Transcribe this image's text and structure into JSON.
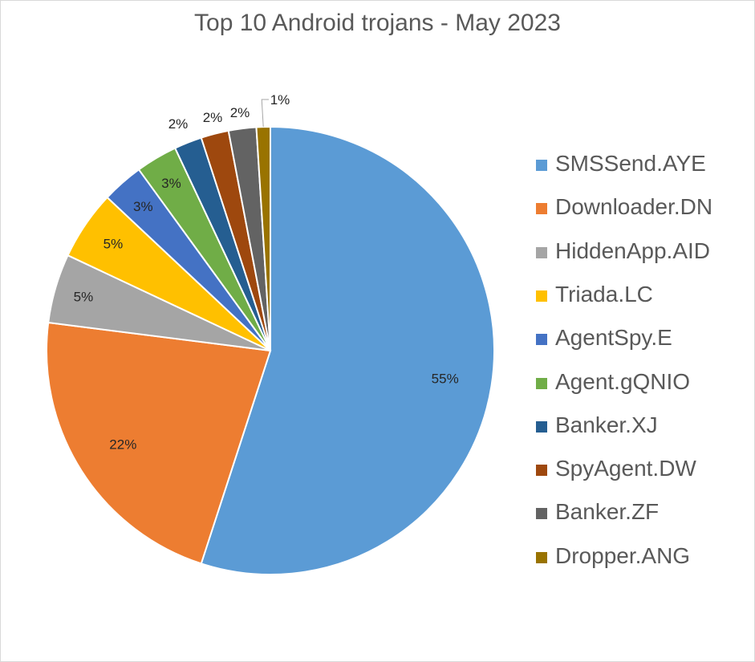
{
  "chart_data": {
    "type": "pie",
    "title": "Top 10 Android trojans - May 2023",
    "categories": [
      "SMSSend.AYE",
      "Downloader.DN",
      "HiddenApp.AID",
      "Triada.LC",
      "AgentSpy.E",
      "Agent.gQNIO",
      "Banker.XJ",
      "SpyAgent.DW",
      "Banker.ZF",
      "Dropper.ANG"
    ],
    "values": [
      55,
      22,
      5,
      5,
      3,
      3,
      2,
      2,
      2,
      1
    ],
    "data_labels": [
      "55%",
      "22%",
      "5%",
      "5%",
      "3%",
      "3%",
      "2%",
      "2%",
      "2%",
      "1%"
    ],
    "colors": [
      "#5b9bd5",
      "#ed7d31",
      "#a5a5a5",
      "#ffc000",
      "#4472c4",
      "#70ad47",
      "#255e91",
      "#9e480e",
      "#636363",
      "#997300"
    ],
    "legend_position": "right"
  }
}
